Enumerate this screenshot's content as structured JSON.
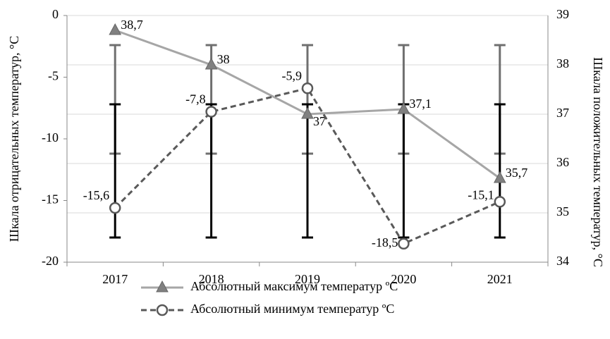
{
  "chart_data": {
    "type": "line",
    "categories": [
      "2017",
      "2018",
      "2019",
      "2020",
      "2021"
    ],
    "series": [
      {
        "name": "Абсолютный максимум температур ºС",
        "color": "#a6a6a6",
        "marker_color": "#808080",
        "marker": "triangle",
        "axis": "y2",
        "values": [
          38.7,
          38,
          37,
          37.1,
          35.7
        ],
        "value_labels": [
          "38,7",
          "38",
          "37",
          "37,1",
          "35,7"
        ],
        "error_high": 38.4,
        "error_low": 36.2,
        "error_color": "#6f6f6f"
      },
      {
        "name": "Абсолютный минимум температур ºС",
        "color": "#595959",
        "marker_color": "#595959",
        "marker": "circle",
        "dashed": true,
        "values": [
          -15.6,
          -7.8,
          -5.9,
          -18.5,
          -15.1
        ],
        "value_labels": [
          "-15,6",
          "-7,8",
          "-5,9",
          "-18,5",
          "-15,1"
        ],
        "error_high": -7.2,
        "error_low": -18.0,
        "error_color": "#000000"
      }
    ],
    "ylabel": "Шкала отрицательных температур, °С",
    "y2label": "Шкала положительных температур, °С",
    "ylim": [
      -20,
      0
    ],
    "yticks": [
      -20,
      -15,
      -10,
      -5,
      0
    ],
    "y2lim": [
      34,
      39
    ],
    "y2ticks": [
      34,
      35,
      36,
      37,
      38,
      39
    ],
    "grid": true,
    "legend": "bottom"
  }
}
